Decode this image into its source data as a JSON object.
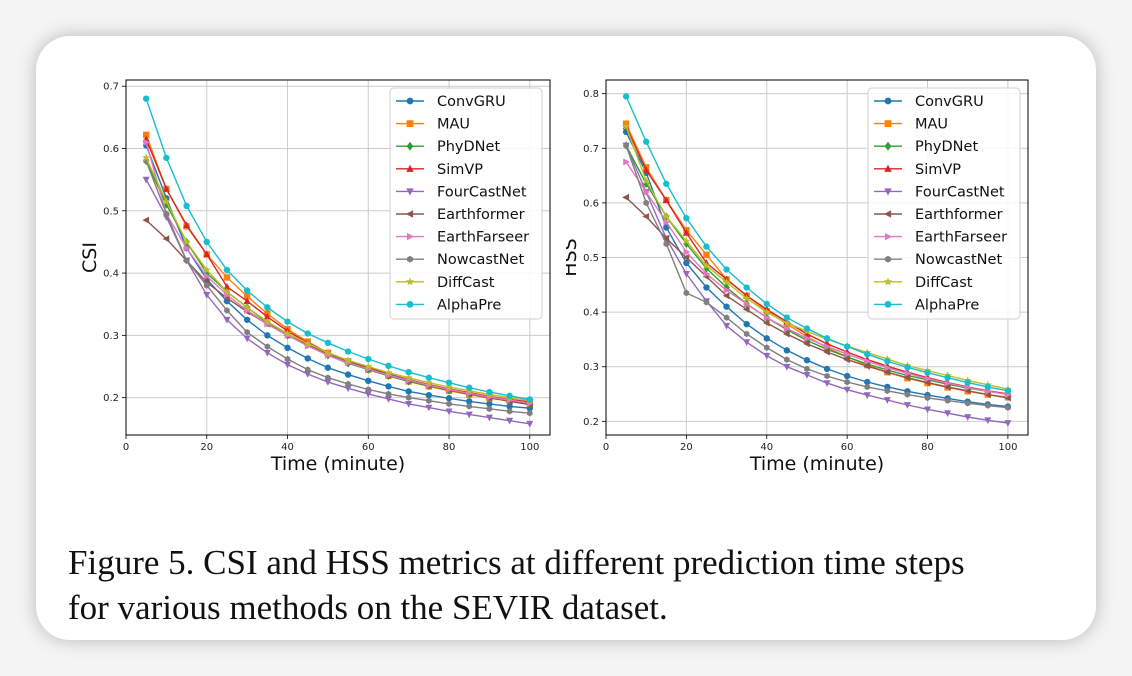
{
  "caption": {
    "line1": "Figure 5. CSI and HSS metrics at different prediction time steps",
    "line2": "for various methods on the SEVIR dataset."
  },
  "chart_data": [
    {
      "id": "csi",
      "type": "line",
      "title": "",
      "xlabel": "Time (minute)",
      "ylabel": "CSI",
      "xlim": [
        0,
        105
      ],
      "ylim": [
        0.14,
        0.71
      ],
      "xticks": [
        0,
        20,
        40,
        60,
        80,
        100
      ],
      "yticks": [
        0.2,
        0.3,
        0.4,
        0.5,
        0.6,
        0.7
      ],
      "grid": true,
      "legend_position": "top-right",
      "x": [
        5,
        10,
        15,
        20,
        25,
        30,
        35,
        40,
        45,
        50,
        55,
        60,
        65,
        70,
        75,
        80,
        85,
        90,
        95,
        100
      ],
      "series": [
        {
          "name": "ConvGRU",
          "color": "#1f77b4",
          "marker": "circle",
          "values": [
            0.605,
            0.52,
            0.44,
            0.39,
            0.355,
            0.325,
            0.3,
            0.28,
            0.263,
            0.248,
            0.237,
            0.227,
            0.218,
            0.21,
            0.204,
            0.199,
            0.194,
            0.19,
            0.186,
            0.183
          ]
        },
        {
          "name": "MAU",
          "color": "#ff7f0e",
          "marker": "square",
          "values": [
            0.622,
            0.535,
            0.475,
            0.43,
            0.393,
            0.363,
            0.335,
            0.31,
            0.29,
            0.272,
            0.258,
            0.245,
            0.235,
            0.226,
            0.218,
            0.211,
            0.205,
            0.199,
            0.195,
            0.19
          ]
        },
        {
          "name": "PhyDNet",
          "color": "#2ca02c",
          "marker": "diamond",
          "values": [
            0.58,
            0.51,
            0.45,
            0.4,
            0.37,
            0.345,
            0.32,
            0.3,
            0.285,
            0.268,
            0.255,
            0.245,
            0.235,
            0.226,
            0.219,
            0.212,
            0.206,
            0.2,
            0.195,
            0.19
          ]
        },
        {
          "name": "SimVP",
          "color": "#d62728",
          "marker": "triangle-up",
          "values": [
            0.615,
            0.535,
            0.477,
            0.43,
            0.378,
            0.355,
            0.33,
            0.307,
            0.288,
            0.272,
            0.259,
            0.248,
            0.238,
            0.229,
            0.221,
            0.214,
            0.208,
            0.202,
            0.197,
            0.193
          ]
        },
        {
          "name": "FourCastNet",
          "color": "#9467bd",
          "marker": "triangle-down",
          "values": [
            0.55,
            0.49,
            0.42,
            0.365,
            0.325,
            0.295,
            0.272,
            0.253,
            0.238,
            0.225,
            0.215,
            0.206,
            0.198,
            0.19,
            0.184,
            0.178,
            0.173,
            0.168,
            0.163,
            0.158
          ]
        },
        {
          "name": "Earthformer",
          "color": "#8c564b",
          "marker": "triangle-left",
          "values": [
            0.485,
            0.455,
            0.42,
            0.385,
            0.36,
            0.338,
            0.318,
            0.3,
            0.285,
            0.27,
            0.258,
            0.247,
            0.237,
            0.228,
            0.22,
            0.213,
            0.206,
            0.2,
            0.194,
            0.189
          ]
        },
        {
          "name": "EarthFarseer",
          "color": "#e377c2",
          "marker": "triangle-right",
          "values": [
            0.61,
            0.495,
            0.44,
            0.395,
            0.365,
            0.34,
            0.318,
            0.3,
            0.283,
            0.268,
            0.256,
            0.246,
            0.236,
            0.228,
            0.22,
            0.213,
            0.207,
            0.201,
            0.196,
            0.191
          ]
        },
        {
          "name": "NowcastNet",
          "color": "#7f7f7f",
          "marker": "hexagon",
          "values": [
            0.58,
            0.495,
            0.42,
            0.38,
            0.34,
            0.305,
            0.282,
            0.262,
            0.245,
            0.232,
            0.222,
            0.213,
            0.206,
            0.2,
            0.195,
            0.19,
            0.186,
            0.182,
            0.178,
            0.175
          ]
        },
        {
          "name": "DiffCast",
          "color": "#bcbd22",
          "marker": "star",
          "values": [
            0.585,
            0.515,
            0.45,
            0.405,
            0.37,
            0.345,
            0.322,
            0.303,
            0.287,
            0.272,
            0.26,
            0.25,
            0.24,
            0.232,
            0.224,
            0.217,
            0.211,
            0.205,
            0.2,
            0.195
          ]
        },
        {
          "name": "AlphaPre",
          "color": "#17becf",
          "marker": "circle",
          "values": [
            0.68,
            0.585,
            0.508,
            0.45,
            0.405,
            0.372,
            0.345,
            0.322,
            0.303,
            0.288,
            0.274,
            0.262,
            0.251,
            0.241,
            0.232,
            0.224,
            0.216,
            0.209,
            0.203,
            0.197
          ]
        }
      ]
    },
    {
      "id": "hss",
      "type": "line",
      "title": "",
      "xlabel": "Time (minute)",
      "ylabel": "HSS",
      "xlim": [
        0,
        105
      ],
      "ylim": [
        0.175,
        0.825
      ],
      "xticks": [
        0,
        20,
        40,
        60,
        80,
        100
      ],
      "yticks": [
        0.2,
        0.3,
        0.4,
        0.5,
        0.6,
        0.7,
        0.8
      ],
      "grid": true,
      "legend_position": "top-right",
      "x": [
        5,
        10,
        15,
        20,
        25,
        30,
        35,
        40,
        45,
        50,
        55,
        60,
        65,
        70,
        75,
        80,
        85,
        90,
        95,
        100
      ],
      "series": [
        {
          "name": "ConvGRU",
          "color": "#1f77b4",
          "marker": "circle",
          "values": [
            0.73,
            0.655,
            0.555,
            0.49,
            0.445,
            0.41,
            0.378,
            0.352,
            0.33,
            0.312,
            0.296,
            0.283,
            0.272,
            0.263,
            0.255,
            0.248,
            0.242,
            0.236,
            0.231,
            0.227
          ]
        },
        {
          "name": "MAU",
          "color": "#ff7f0e",
          "marker": "square",
          "values": [
            0.745,
            0.665,
            0.605,
            0.55,
            0.505,
            0.46,
            0.43,
            0.402,
            0.378,
            0.355,
            0.335,
            0.318,
            0.303,
            0.29,
            0.279,
            0.27,
            0.262,
            0.255,
            0.249,
            0.244
          ]
        },
        {
          "name": "PhyDNet",
          "color": "#2ca02c",
          "marker": "diamond",
          "values": [
            0.705,
            0.635,
            0.575,
            0.525,
            0.48,
            0.445,
            0.415,
            0.39,
            0.368,
            0.348,
            0.332,
            0.318,
            0.305,
            0.294,
            0.284,
            0.276,
            0.268,
            0.261,
            0.255,
            0.25
          ]
        },
        {
          "name": "SimVP",
          "color": "#d62728",
          "marker": "triangle-up",
          "values": [
            0.74,
            0.66,
            0.605,
            0.545,
            0.49,
            0.46,
            0.43,
            0.405,
            0.382,
            0.36,
            0.342,
            0.327,
            0.313,
            0.301,
            0.29,
            0.28,
            0.271,
            0.263,
            0.256,
            0.25
          ]
        },
        {
          "name": "FourCastNet",
          "color": "#9467bd",
          "marker": "triangle-down",
          "values": [
            0.705,
            0.62,
            0.535,
            0.47,
            0.42,
            0.375,
            0.345,
            0.32,
            0.3,
            0.285,
            0.27,
            0.258,
            0.248,
            0.239,
            0.23,
            0.222,
            0.215,
            0.208,
            0.202,
            0.197
          ]
        },
        {
          "name": "Earthformer",
          "color": "#8c564b",
          "marker": "triangle-left",
          "values": [
            0.61,
            0.575,
            0.535,
            0.5,
            0.465,
            0.43,
            0.405,
            0.38,
            0.36,
            0.342,
            0.327,
            0.313,
            0.301,
            0.29,
            0.28,
            0.271,
            0.263,
            0.256,
            0.249,
            0.243
          ]
        },
        {
          "name": "EarthFarseer",
          "color": "#e377c2",
          "marker": "triangle-right",
          "values": [
            0.675,
            0.62,
            0.565,
            0.51,
            0.47,
            0.44,
            0.415,
            0.39,
            0.37,
            0.352,
            0.337,
            0.323,
            0.31,
            0.298,
            0.288,
            0.278,
            0.27,
            0.262,
            0.255,
            0.249
          ]
        },
        {
          "name": "NowcastNet",
          "color": "#7f7f7f",
          "marker": "hexagon",
          "values": [
            0.705,
            0.6,
            0.525,
            0.435,
            0.418,
            0.39,
            0.36,
            0.335,
            0.313,
            0.296,
            0.283,
            0.272,
            0.263,
            0.256,
            0.249,
            0.243,
            0.238,
            0.233,
            0.229,
            0.225
          ]
        },
        {
          "name": "DiffCast",
          "color": "#bcbd22",
          "marker": "star",
          "values": [
            0.74,
            0.64,
            0.575,
            0.53,
            0.485,
            0.455,
            0.425,
            0.4,
            0.38,
            0.365,
            0.35,
            0.338,
            0.326,
            0.314,
            0.302,
            0.293,
            0.284,
            0.275,
            0.267,
            0.259
          ]
        },
        {
          "name": "AlphaPre",
          "color": "#17becf",
          "marker": "circle",
          "values": [
            0.795,
            0.712,
            0.635,
            0.572,
            0.52,
            0.478,
            0.445,
            0.415,
            0.39,
            0.37,
            0.352,
            0.337,
            0.323,
            0.31,
            0.299,
            0.289,
            0.28,
            0.271,
            0.263,
            0.256
          ]
        }
      ]
    }
  ]
}
